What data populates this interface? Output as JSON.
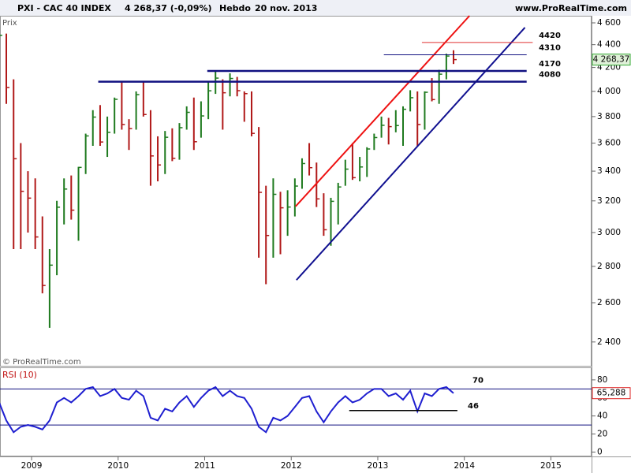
{
  "header": {
    "symbol": "PXI - CAC 40 INDEX",
    "quote": "4 268,37 (-0,09%)",
    "period": "Hebdo",
    "date": "20 nov. 2013",
    "site": "www.ProRealTime.com"
  },
  "chart_data": [
    {
      "type": "ohlc",
      "label": "Prix",
      "credit": "© ProRealTime.com",
      "log_scale": true,
      "up_color": "#1e7a1e",
      "down_color": "#b01818",
      "x": [
        2008.625,
        2008.708,
        2008.792,
        2008.875,
        2008.958,
        2009.042,
        2009.125,
        2009.208,
        2009.292,
        2009.375,
        2009.458,
        2009.542,
        2009.625,
        2009.708,
        2009.792,
        2009.875,
        2009.958,
        2010.042,
        2010.125,
        2010.208,
        2010.292,
        2010.375,
        2010.458,
        2010.542,
        2010.625,
        2010.708,
        2010.792,
        2010.875,
        2010.958,
        2011.042,
        2011.125,
        2011.208,
        2011.292,
        2011.375,
        2011.458,
        2011.542,
        2011.625,
        2011.708,
        2011.792,
        2011.875,
        2011.958,
        2012.042,
        2012.125,
        2012.208,
        2012.292,
        2012.375,
        2012.458,
        2012.542,
        2012.625,
        2012.708,
        2012.792,
        2012.875,
        2012.958,
        2013.042,
        2013.125,
        2013.208,
        2013.292,
        2013.375,
        2013.458,
        2013.542,
        2013.625,
        2013.708,
        2013.792,
        2013.875
      ],
      "high": [
        4550,
        4500,
        4100,
        3600,
        3400,
        3350,
        3100,
        2900,
        3200,
        3350,
        3370,
        3430,
        3670,
        3850,
        3890,
        3800,
        3950,
        4080,
        3780,
        4000,
        4080,
        3850,
        3650,
        3690,
        3710,
        3750,
        3880,
        3950,
        3920,
        4080,
        4170,
        4100,
        4150,
        4120,
        4000,
        4000,
        3720,
        3300,
        3350,
        3260,
        3270,
        3350,
        3490,
        3600,
        3460,
        3250,
        3220,
        3320,
        3480,
        3600,
        3500,
        3570,
        3670,
        3800,
        3790,
        3850,
        3880,
        4010,
        4000,
        4000,
        4110,
        4180,
        4320,
        4350
      ],
      "low": [
        4300,
        3900,
        2900,
        2900,
        3000,
        2900,
        2650,
        2470,
        2750,
        3050,
        3080,
        2950,
        3380,
        3580,
        3580,
        3500,
        3670,
        3700,
        3550,
        3700,
        3800,
        3300,
        3330,
        3380,
        3470,
        3480,
        3700,
        3550,
        3640,
        3780,
        3980,
        3700,
        3960,
        3960,
        3760,
        3650,
        2850,
        2700,
        2850,
        2870,
        2980,
        3100,
        3280,
        3370,
        3160,
        2980,
        2920,
        3050,
        3300,
        3340,
        3330,
        3360,
        3550,
        3640,
        3590,
        3680,
        3580,
        3840,
        3580,
        3700,
        3920,
        3900,
        4100,
        4230
      ],
      "close": [
        4485,
        4032,
        3487,
        3263,
        3218,
        2973,
        2693,
        2807,
        3159,
        3278,
        3140,
        3426,
        3653,
        3796,
        3608,
        3680,
        3936,
        3739,
        3708,
        3974,
        3816,
        3507,
        3443,
        3643,
        3490,
        3715,
        3833,
        3610,
        3805,
        4005,
        4110,
        3989,
        4107,
        4006,
        3982,
        3672,
        3256,
        2982,
        3243,
        3155,
        3160,
        3298,
        3453,
        3424,
        3213,
        3017,
        3197,
        3292,
        3414,
        3355,
        3429,
        3557,
        3641,
        3733,
        3723,
        3731,
        3857,
        3949,
        3739,
        3993,
        3934,
        4143,
        4299,
        4268
      ],
      "xlim": [
        2008.635,
        2015.47
      ],
      "xticks": [
        2009,
        2010,
        2011,
        2012,
        2013,
        2014,
        2015
      ],
      "ylim": [
        2290,
        4667
      ],
      "yticks": [
        {
          "value": 2400,
          "label": "2 400"
        },
        {
          "value": 2600,
          "label": "2 600"
        },
        {
          "value": 2800,
          "label": "2 800"
        },
        {
          "value": 3000,
          "label": "3 000"
        },
        {
          "value": 3200,
          "label": "3 200"
        },
        {
          "value": 3400,
          "label": "3 400"
        },
        {
          "value": 3600,
          "label": "3 600"
        },
        {
          "value": 3800,
          "label": "3 800"
        },
        {
          "value": 4000,
          "label": "4 000"
        },
        {
          "value": 4200,
          "label": "4 200"
        },
        {
          "value": 4400,
          "label": "4 400"
        },
        {
          "value": 4600,
          "label": "4 600"
        }
      ],
      "last": {
        "value": 4268.37,
        "label": "4 268,37"
      },
      "levels": [
        {
          "value": 4420,
          "x0": 2013.51,
          "x1": 2014.79,
          "color": "#e03030",
          "width": 1
        },
        {
          "value": 4310,
          "x0": 2013.07,
          "x1": 2014.72,
          "color": "#101080",
          "width": 1
        },
        {
          "value": 4170,
          "x0": 2011.03,
          "x1": 2014.72,
          "color": "#101080",
          "width": 2.5
        },
        {
          "value": 4080,
          "x0": 2009.77,
          "x1": 2014.72,
          "color": "#101080",
          "width": 2.5
        }
      ],
      "trendlines": [
        {
          "x0": 2012.05,
          "y0": 3164,
          "x1": 2014.06,
          "y1": 4667,
          "color": "#ee1111"
        },
        {
          "x0": 2012.06,
          "y0": 2723,
          "x1": 2014.7,
          "y1": 4556,
          "color": "#101090"
        }
      ]
    },
    {
      "type": "line",
      "label": "RSI (10)",
      "color": "#1f1fd0",
      "x": [
        2008.625,
        2008.708,
        2008.792,
        2008.875,
        2008.958,
        2009.042,
        2009.125,
        2009.208,
        2009.292,
        2009.375,
        2009.458,
        2009.542,
        2009.625,
        2009.708,
        2009.792,
        2009.875,
        2009.958,
        2010.042,
        2010.125,
        2010.208,
        2010.292,
        2010.375,
        2010.458,
        2010.542,
        2010.625,
        2010.708,
        2010.792,
        2010.875,
        2010.958,
        2011.042,
        2011.125,
        2011.208,
        2011.292,
        2011.375,
        2011.458,
        2011.542,
        2011.625,
        2011.708,
        2011.792,
        2011.875,
        2011.958,
        2012.042,
        2012.125,
        2012.208,
        2012.292,
        2012.375,
        2012.458,
        2012.542,
        2012.625,
        2012.708,
        2012.792,
        2012.875,
        2012.958,
        2013.042,
        2013.125,
        2013.208,
        2013.292,
        2013.375,
        2013.458,
        2013.542,
        2013.625,
        2013.708,
        2013.792,
        2013.875
      ],
      "values": [
        55,
        35,
        22,
        28,
        30,
        28,
        25,
        35,
        55,
        60,
        55,
        62,
        70,
        72,
        62,
        65,
        70,
        60,
        58,
        68,
        62,
        38,
        35,
        48,
        45,
        55,
        62,
        50,
        60,
        68,
        72,
        62,
        68,
        62,
        60,
        48,
        28,
        22,
        38,
        35,
        40,
        50,
        60,
        62,
        45,
        33,
        45,
        55,
        62,
        55,
        58,
        65,
        70,
        70,
        62,
        65,
        58,
        68,
        45,
        65,
        62,
        70,
        72,
        65.288
      ],
      "xlim": [
        2008.635,
        2015.47
      ],
      "ylim": [
        -4,
        93
      ],
      "yticks": [
        0,
        20,
        40,
        60,
        80
      ],
      "bands": [
        70,
        30
      ],
      "last": {
        "value": 65.288,
        "label": "65,288"
      },
      "levels": [
        {
          "value": 46,
          "x0": 2012.67,
          "x1": 2013.92
        }
      ]
    }
  ]
}
